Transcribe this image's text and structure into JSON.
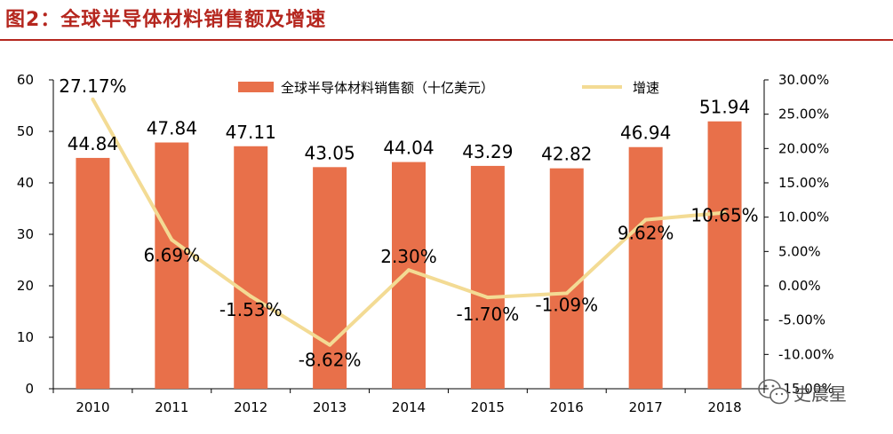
{
  "figure": {
    "title": "图2：全球半导体材料销售额及增速"
  },
  "watermark": {
    "text": "史晨星",
    "icon": "wechat-icon"
  },
  "colors": {
    "bar": "#E8704A",
    "line": "#F3DB94",
    "title": "#B5261E",
    "axis": "#000000"
  },
  "chart_data": {
    "type": "bar",
    "title": "",
    "categories": [
      "2010",
      "2011",
      "2012",
      "2013",
      "2014",
      "2015",
      "2016",
      "2017",
      "2018"
    ],
    "series": [
      {
        "name": "全球半导体材料销售额（十亿美元）",
        "type": "bar",
        "axis": "left",
        "values": [
          44.84,
          47.84,
          47.11,
          43.05,
          44.04,
          43.29,
          42.82,
          46.94,
          51.94
        ],
        "labels": [
          "44.84",
          "47.84",
          "47.11",
          "43.05",
          "44.04",
          "43.29",
          "42.82",
          "46.94",
          "51.94"
        ]
      },
      {
        "name": "增速",
        "type": "line",
        "axis": "right",
        "values": [
          27.17,
          6.69,
          -1.53,
          -8.62,
          2.3,
          -1.7,
          -1.09,
          9.62,
          10.65
        ],
        "labels": [
          "27.17%",
          "6.69%",
          "-1.53%",
          "-8.62%",
          "2.30%",
          "-1.70%",
          "-1.09%",
          "9.62%",
          "10.65%"
        ]
      }
    ],
    "y_left": {
      "ylim": [
        0,
        60
      ],
      "ticks": [
        "0",
        "10",
        "20",
        "30",
        "40",
        "50",
        "60"
      ]
    },
    "y_right": {
      "ylim": [
        -15,
        30
      ],
      "ticks": [
        "-15.00%",
        "-10.00%",
        "-5.00%",
        "0.00%",
        "5.00%",
        "10.00%",
        "15.00%",
        "20.00%",
        "25.00%",
        "30.00%"
      ]
    },
    "legend_position": "top-center",
    "grid": false
  }
}
